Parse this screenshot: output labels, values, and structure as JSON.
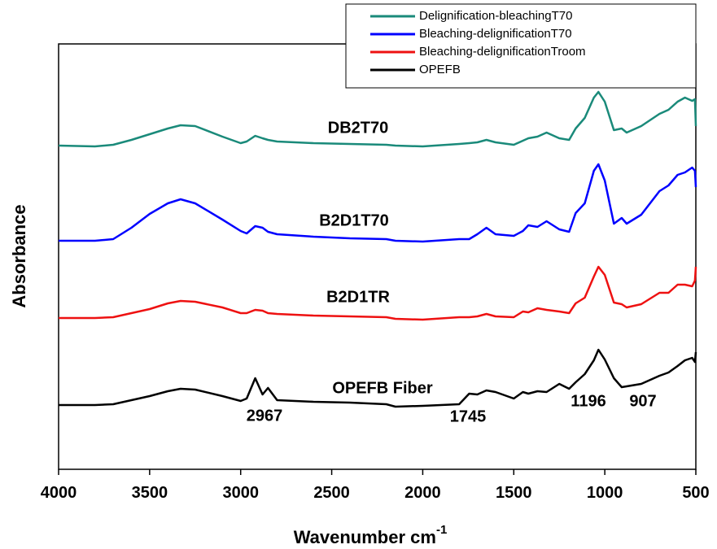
{
  "chart_data": {
    "type": "line",
    "xlabel": "Wavenumber cm",
    "xlabel_superscript": "-1",
    "ylabel": "Absorbance",
    "xlim": [
      4000,
      500
    ],
    "xticks": [
      4000,
      3500,
      3000,
      2500,
      2000,
      1500,
      1000,
      500
    ],
    "ylim": [
      0,
      523
    ],
    "legend": "upper right",
    "x": [
      4000,
      3800,
      3700,
      3600,
      3500,
      3400,
      3330,
      3250,
      3100,
      3000,
      2967,
      2920,
      2880,
      2850,
      2800,
      2600,
      2400,
      2200,
      2150,
      2000,
      1800,
      1745,
      1700,
      1650,
      1600,
      1500,
      1450,
      1420,
      1370,
      1320,
      1250,
      1196,
      1160,
      1110,
      1060,
      1035,
      1000,
      950,
      907,
      880,
      800,
      700,
      650,
      600,
      560,
      520,
      505,
      500
    ],
    "series": [
      {
        "name": "Delignification-bleachingT70",
        "color": "#1a8a7a",
        "values": [
          398,
          397,
          399,
          405,
          412,
          419,
          423,
          422,
          409,
          401,
          403,
          410,
          407,
          405,
          403,
          401,
          400,
          399,
          398,
          397,
          400,
          401,
          402,
          405,
          402,
          399,
          404,
          407,
          409,
          414,
          407,
          405,
          419,
          432,
          457,
          464,
          452,
          417,
          419,
          414,
          422,
          437,
          442,
          452,
          457,
          453,
          455,
          422
        ]
      },
      {
        "name": "Bleaching-delignificationT70",
        "color": "#0000ff",
        "values": [
          281,
          281,
          283,
          297,
          314,
          327,
          332,
          327,
          307,
          293,
          290,
          299,
          297,
          292,
          289,
          286,
          284,
          283,
          281,
          280,
          283,
          283,
          289,
          297,
          289,
          287,
          293,
          300,
          298,
          305,
          295,
          292,
          315,
          327,
          367,
          375,
          355,
          302,
          309,
          302,
          313,
          342,
          349,
          362,
          365,
          371,
          367,
          347
        ]
      },
      {
        "name": "Bleaching-delignificationTroom",
        "color": "#ee1111",
        "values": [
          186,
          186,
          187,
          192,
          197,
          204,
          207,
          206,
          199,
          192,
          192,
          196,
          195,
          192,
          191,
          189,
          188,
          187,
          185,
          184,
          187,
          187,
          188,
          191,
          188,
          187,
          194,
          193,
          198,
          196,
          194,
          192,
          204,
          211,
          237,
          249,
          239,
          205,
          203,
          199,
          203,
          217,
          217,
          227,
          227,
          225,
          232,
          249
        ]
      },
      {
        "name": "OPEFB",
        "color": "#000000",
        "values": [
          79,
          79,
          80,
          85,
          90,
          96,
          99,
          98,
          90,
          84,
          87,
          112,
          92,
          100,
          85,
          83,
          82,
          80,
          77,
          78,
          80,
          93,
          92,
          97,
          95,
          87,
          95,
          93,
          96,
          95,
          105,
          99,
          107,
          117,
          134,
          147,
          135,
          112,
          101,
          102,
          105,
          115,
          119,
          127,
          134,
          137,
          132,
          144
        ]
      }
    ],
    "annotations": [
      "DB2T70",
      "B2D1T70",
      "B2D1TR",
      "OPEFB Fiber",
      "2967",
      "1745",
      "1196",
      "907"
    ]
  }
}
